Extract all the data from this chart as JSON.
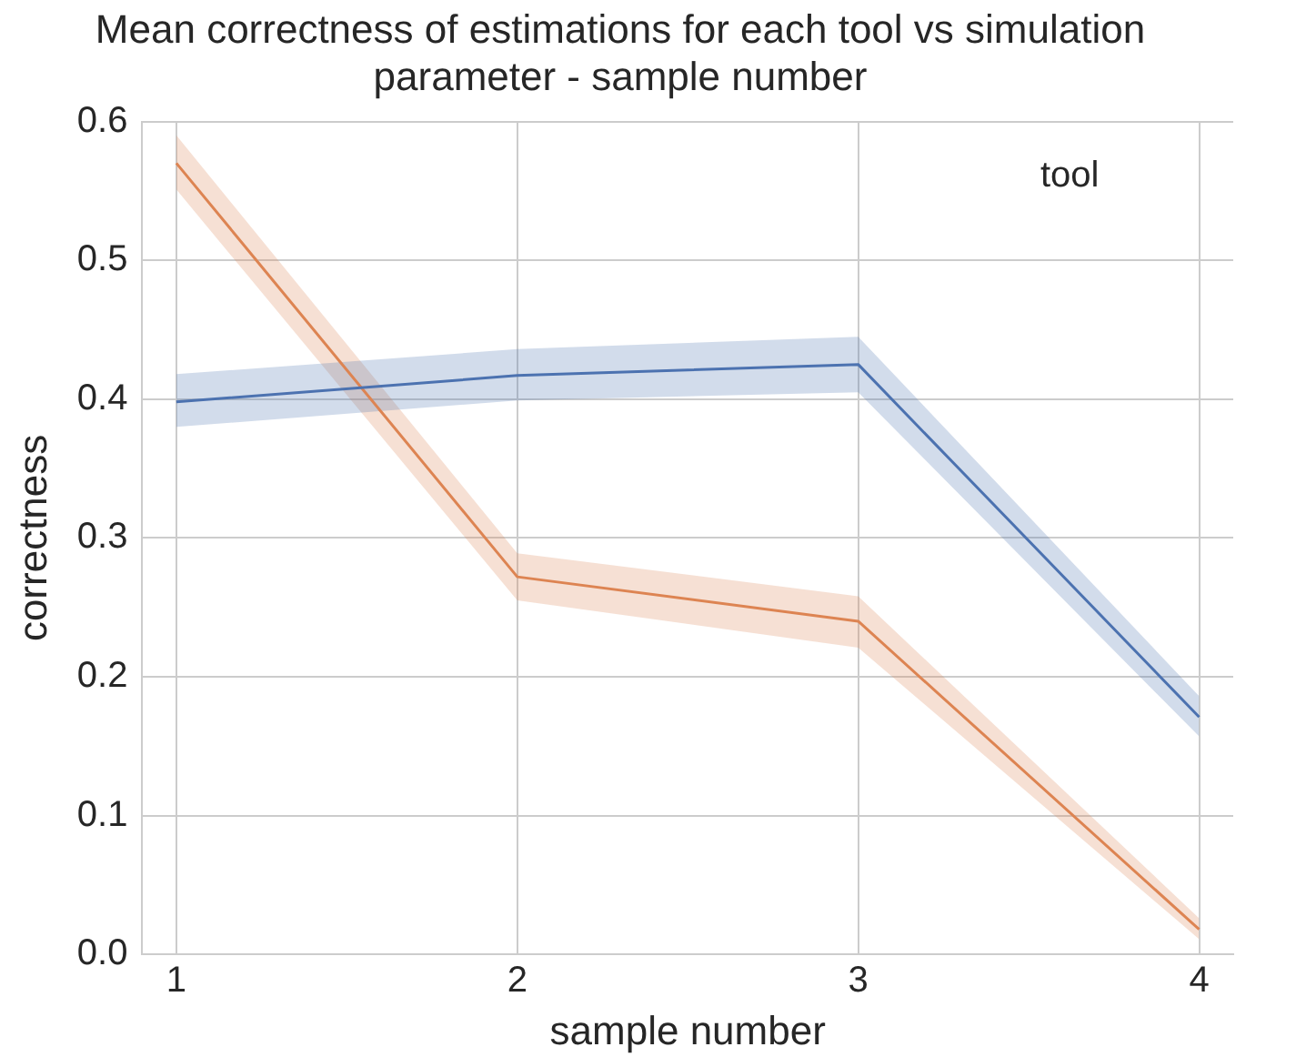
{
  "chart_data": {
    "type": "line",
    "title": "Mean correctness of estimations for each tool vs simulation\nparameter - sample number",
    "xlabel": "sample number",
    "ylabel": "correctness",
    "legend_title": "tool",
    "grid": true,
    "marker": "none",
    "line_style": "solid",
    "x": [
      1,
      2,
      3,
      4
    ],
    "xlim": [
      0.9,
      4.1
    ],
    "xticks": [
      1,
      2,
      3,
      4
    ],
    "ylim": [
      0,
      0.6
    ],
    "yticks": [
      {
        "value": 0,
        "label": "0.0"
      },
      0.1,
      0.2,
      0.3,
      0.4,
      0.5,
      0.6
    ],
    "series": [
      {
        "color": "#4c72b0",
        "values": [
          0.398,
          0.417,
          0.425,
          0.171
        ],
        "lower": [
          0.38,
          0.399,
          0.405,
          0.157
        ],
        "upper": [
          0.418,
          0.436,
          0.445,
          0.186
        ]
      },
      {
        "color": "#dd8452",
        "values": [
          0.57,
          0.272,
          0.24,
          0.018
        ],
        "lower": [
          0.551,
          0.255,
          0.221,
          0.011
        ],
        "upper": [
          0.59,
          0.289,
          0.258,
          0.026
        ]
      }
    ]
  }
}
